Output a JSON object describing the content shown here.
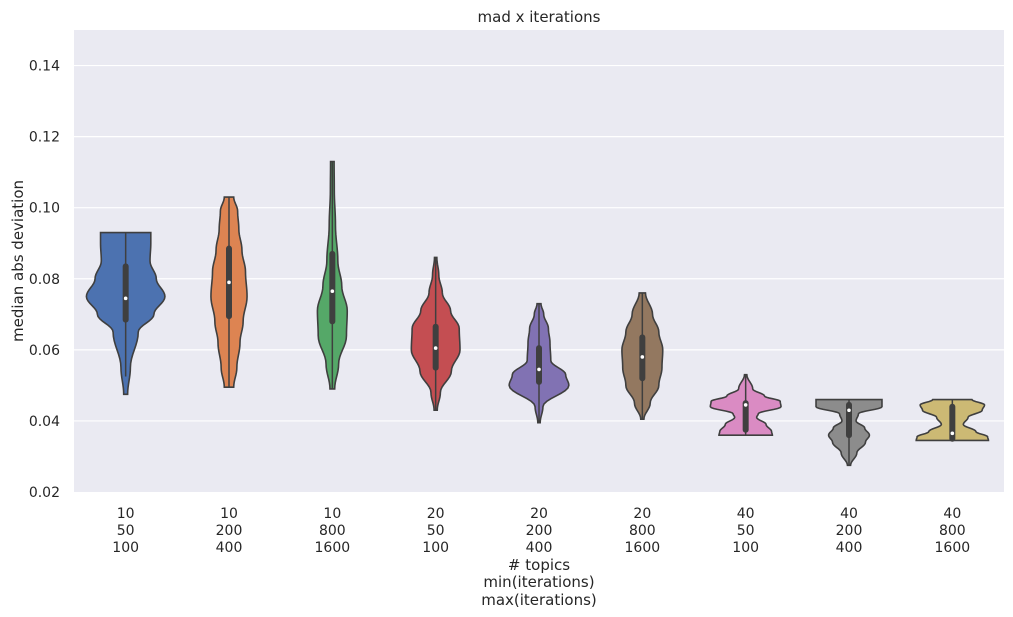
{
  "chart_data": {
    "type": "violin",
    "title": "mad x iterations",
    "xlabel_lines": [
      "# topics",
      "min(iterations)",
      "max(iterations)"
    ],
    "ylabel": "median abs deviation",
    "ylim": [
      0.02,
      0.15
    ],
    "yticks": [
      "0.02",
      "0.04",
      "0.06",
      "0.08",
      "0.10",
      "0.12",
      "0.14"
    ],
    "grid": true,
    "categories": [
      {
        "lines": [
          "10",
          "50",
          "100"
        ],
        "color": "#4c72b0",
        "profile": [
          [
            0.0475,
            0.05
          ],
          [
            0.055,
            0.12
          ],
          [
            0.065,
            0.32
          ],
          [
            0.07,
            0.72
          ],
          [
            0.075,
            1.0
          ],
          [
            0.08,
            0.78
          ],
          [
            0.085,
            0.62
          ],
          [
            0.09,
            0.64
          ],
          [
            0.093,
            0.64
          ]
        ],
        "q1": 0.0685,
        "median": 0.0745,
        "q3": 0.0835,
        "min": 0.0525,
        "max": 0.093
      },
      {
        "lines": [
          "10",
          "200",
          "400"
        ],
        "color": "#dd8452",
        "profile": [
          [
            0.0495,
            0.12
          ],
          [
            0.055,
            0.2
          ],
          [
            0.062,
            0.28
          ],
          [
            0.068,
            0.36
          ],
          [
            0.075,
            0.46
          ],
          [
            0.082,
            0.42
          ],
          [
            0.088,
            0.33
          ],
          [
            0.094,
            0.25
          ],
          [
            0.099,
            0.22
          ],
          [
            0.103,
            0.12
          ]
        ],
        "q1": 0.0695,
        "median": 0.079,
        "q3": 0.0885,
        "min": 0.0495,
        "max": 0.103
      },
      {
        "lines": [
          "10",
          "800",
          "1600"
        ],
        "color": "#55a868",
        "profile": [
          [
            0.049,
            0.06
          ],
          [
            0.056,
            0.16
          ],
          [
            0.064,
            0.36
          ],
          [
            0.071,
            0.38
          ],
          [
            0.078,
            0.24
          ],
          [
            0.085,
            0.14
          ],
          [
            0.095,
            0.08
          ],
          [
            0.105,
            0.05
          ],
          [
            0.113,
            0.045
          ]
        ],
        "q1": 0.068,
        "median": 0.0765,
        "q3": 0.087,
        "min": 0.049,
        "max": 0.113
      },
      {
        "lines": [
          "20",
          "50",
          "100"
        ],
        "color": "#c44e52",
        "profile": [
          [
            0.043,
            0.04
          ],
          [
            0.048,
            0.12
          ],
          [
            0.054,
            0.4
          ],
          [
            0.06,
            0.62
          ],
          [
            0.066,
            0.6
          ],
          [
            0.071,
            0.38
          ],
          [
            0.076,
            0.17
          ],
          [
            0.081,
            0.08
          ],
          [
            0.086,
            0.03
          ]
        ],
        "q1": 0.055,
        "median": 0.0605,
        "q3": 0.0665,
        "min": 0.043,
        "max": 0.086
      },
      {
        "lines": [
          "20",
          "200",
          "400"
        ],
        "color": "#8172b3",
        "profile": [
          [
            0.0395,
            0.03
          ],
          [
            0.044,
            0.1
          ],
          [
            0.05,
            0.76
          ],
          [
            0.053,
            0.68
          ],
          [
            0.057,
            0.3
          ],
          [
            0.062,
            0.28
          ],
          [
            0.066,
            0.24
          ],
          [
            0.07,
            0.12
          ],
          [
            0.073,
            0.05
          ]
        ],
        "q1": 0.051,
        "median": 0.0545,
        "q3": 0.0605,
        "min": 0.0395,
        "max": 0.073
      },
      {
        "lines": [
          "20",
          "800",
          "1600"
        ],
        "color": "#937860",
        "profile": [
          [
            0.0405,
            0.04
          ],
          [
            0.045,
            0.2
          ],
          [
            0.05,
            0.42
          ],
          [
            0.055,
            0.5
          ],
          [
            0.06,
            0.52
          ],
          [
            0.065,
            0.42
          ],
          [
            0.07,
            0.26
          ],
          [
            0.076,
            0.08
          ]
        ],
        "q1": 0.052,
        "median": 0.058,
        "q3": 0.0635,
        "min": 0.0405,
        "max": 0.076
      },
      {
        "lines": [
          "40",
          "50",
          "100"
        ],
        "color": "#da8bc3",
        "profile": [
          [
            0.036,
            0.68
          ],
          [
            0.037,
            0.66
          ],
          [
            0.039,
            0.52
          ],
          [
            0.041,
            0.28
          ],
          [
            0.042,
            0.32
          ],
          [
            0.044,
            0.9
          ],
          [
            0.0455,
            0.88
          ],
          [
            0.047,
            0.48
          ],
          [
            0.049,
            0.18
          ],
          [
            0.053,
            0.03
          ]
        ],
        "q1": 0.0375,
        "median": 0.0445,
        "q3": 0.045,
        "min": 0.036,
        "max": 0.053
      },
      {
        "lines": [
          "40",
          "200",
          "400"
        ],
        "color": "#8c8c8c",
        "profile": [
          [
            0.0275,
            0.04
          ],
          [
            0.031,
            0.2
          ],
          [
            0.034,
            0.42
          ],
          [
            0.036,
            0.52
          ],
          [
            0.038,
            0.4
          ],
          [
            0.04,
            0.18
          ],
          [
            0.042,
            0.24
          ],
          [
            0.044,
            0.84
          ],
          [
            0.046,
            0.84
          ]
        ],
        "q1": 0.036,
        "median": 0.043,
        "q3": 0.0445,
        "min": 0.0275,
        "max": 0.046
      },
      {
        "lines": [
          "40",
          "800",
          "1600"
        ],
        "color": "#ccb974",
        "profile": [
          [
            0.0345,
            0.92
          ],
          [
            0.0355,
            0.9
          ],
          [
            0.037,
            0.6
          ],
          [
            0.039,
            0.28
          ],
          [
            0.041,
            0.4
          ],
          [
            0.043,
            0.76
          ],
          [
            0.0445,
            0.82
          ],
          [
            0.046,
            0.5
          ]
        ],
        "q1": 0.035,
        "median": 0.0365,
        "q3": 0.044,
        "min": 0.0345,
        "max": 0.046
      }
    ]
  }
}
